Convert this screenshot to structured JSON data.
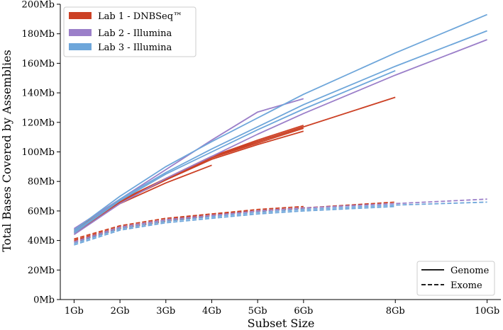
{
  "chart_data": {
    "type": "line",
    "title": "",
    "xlabel": "Subset Size",
    "ylabel": "Total Bases Covered by Assemblies",
    "x_ticks": [
      {
        "value": 1,
        "label": "1Gb"
      },
      {
        "value": 2,
        "label": "2Gb"
      },
      {
        "value": 3,
        "label": "3Gb"
      },
      {
        "value": 4,
        "label": "4Gb"
      },
      {
        "value": 5,
        "label": "5Gb"
      },
      {
        "value": 6,
        "label": "6Gb"
      },
      {
        "value": 8,
        "label": "8Gb"
      },
      {
        "value": 10,
        "label": "10Gb"
      }
    ],
    "y_ticks": [
      {
        "value": 0,
        "label": "0Mb"
      },
      {
        "value": 20,
        "label": "20Mb"
      },
      {
        "value": 40,
        "label": "40Mb"
      },
      {
        "value": 60,
        "label": "60Mb"
      },
      {
        "value": 80,
        "label": "80Mb"
      },
      {
        "value": 100,
        "label": "100Mb"
      },
      {
        "value": 120,
        "label": "120Mb"
      },
      {
        "value": 140,
        "label": "140Mb"
      },
      {
        "value": 160,
        "label": "160Mb"
      },
      {
        "value": 180,
        "label": "180Mb"
      },
      {
        "value": 200,
        "label": "200Mb"
      }
    ],
    "xlim": [
      0.7,
      10.3
    ],
    "ylim": [
      0,
      200
    ],
    "grid": false,
    "legend_labs": {
      "position": "top-left",
      "entries": [
        {
          "label": "Lab 1 - DNBSeq™",
          "color": "#cc4125"
        },
        {
          "label": "Lab 2 - Illumina",
          "color": "#9b7fc9"
        },
        {
          "label": "Lab 3 - Illumina",
          "color": "#6ea6da"
        }
      ]
    },
    "legend_styles": {
      "position": "bottom-right",
      "entries": [
        {
          "label": "Genome",
          "style": "solid"
        },
        {
          "label": "Exome",
          "style": "dashed"
        }
      ]
    },
    "series": [
      {
        "name": "Lab 1 genome a",
        "lab": 0,
        "style": "solid",
        "x": [
          1,
          2,
          3,
          4,
          5,
          6
        ],
        "y": [
          46,
          66,
          81,
          95,
          105,
          114
        ]
      },
      {
        "name": "Lab 1 genome b",
        "lab": 0,
        "style": "solid",
        "x": [
          1,
          2,
          3,
          4,
          5,
          6
        ],
        "y": [
          46,
          66,
          81,
          96,
          106,
          116
        ]
      },
      {
        "name": "Lab 1 genome c",
        "lab": 0,
        "style": "solid",
        "x": [
          1,
          2,
          3,
          4,
          5,
          6
        ],
        "y": [
          47,
          66,
          82,
          97,
          107,
          117
        ]
      },
      {
        "name": "Lab 1 genome d",
        "lab": 0,
        "style": "solid",
        "x": [
          1,
          2,
          3,
          4,
          5,
          6
        ],
        "y": [
          47,
          67,
          82,
          97,
          108,
          118
        ]
      },
      {
        "name": "Lab 1 genome e",
        "lab": 0,
        "style": "solid",
        "x": [
          1,
          2,
          3,
          4,
          5,
          6,
          8
        ],
        "y": [
          47,
          66,
          82,
          96,
          107,
          117,
          137
        ]
      },
      {
        "name": "Lab 1 genome f",
        "lab": 0,
        "style": "solid",
        "x": [
          1,
          2,
          3,
          4
        ],
        "y": [
          45,
          65,
          79,
          91
        ]
      },
      {
        "name": "Lab 2 genome a",
        "lab": 1,
        "style": "solid",
        "x": [
          1,
          2,
          3,
          4,
          5,
          6
        ],
        "y": [
          48,
          68,
          88,
          108,
          127,
          136
        ]
      },
      {
        "name": "Lab 2 genome b",
        "lab": 1,
        "style": "solid",
        "x": [
          1,
          2,
          3,
          4,
          5,
          6,
          8,
          10
        ],
        "y": [
          44,
          65,
          82,
          97,
          112,
          126,
          152,
          176
        ]
      },
      {
        "name": "Lab 3 genome a",
        "lab": 2,
        "style": "solid",
        "x": [
          1,
          2,
          3,
          4,
          5,
          6,
          8,
          10
        ],
        "y": [
          47,
          70,
          90,
          107,
          123,
          139,
          167,
          193
        ]
      },
      {
        "name": "Lab 3 genome b",
        "lab": 2,
        "style": "solid",
        "x": [
          1,
          2,
          3,
          4,
          5,
          6,
          8,
          10
        ],
        "y": [
          46,
          68,
          86,
          102,
          117,
          132,
          158,
          182
        ]
      },
      {
        "name": "Lab 3 genome c",
        "lab": 2,
        "style": "solid",
        "x": [
          1,
          2,
          3,
          4,
          5,
          6,
          8
        ],
        "y": [
          45,
          67,
          85,
          100,
          115,
          129,
          155
        ]
      },
      {
        "name": "Lab 1 exome a",
        "lab": 0,
        "style": "dashed",
        "x": [
          1,
          2,
          3,
          4,
          5,
          6
        ],
        "y": [
          41,
          50,
          55,
          58,
          61,
          63
        ]
      },
      {
        "name": "Lab 1 exome b",
        "lab": 0,
        "style": "dashed",
        "x": [
          1,
          2,
          3,
          4,
          5,
          6
        ],
        "y": [
          40,
          49,
          54,
          58,
          60,
          62
        ]
      },
      {
        "name": "Lab 1 exome c",
        "lab": 0,
        "style": "dashed",
        "x": [
          1,
          2,
          3,
          4,
          5,
          6,
          8
        ],
        "y": [
          39,
          48,
          53,
          57,
          60,
          62,
          66
        ]
      },
      {
        "name": "Lab 2 exome a",
        "lab": 1,
        "style": "dashed",
        "x": [
          1,
          2,
          3,
          4,
          5,
          6,
          8,
          10
        ],
        "y": [
          39,
          49,
          54,
          57,
          60,
          62,
          65,
          68
        ]
      },
      {
        "name": "Lab 3 exome a",
        "lab": 2,
        "style": "dashed",
        "x": [
          1,
          2,
          3,
          4,
          5,
          6,
          8,
          10
        ],
        "y": [
          38,
          48,
          53,
          56,
          59,
          61,
          64,
          66
        ]
      },
      {
        "name": "Lab 3 exome b",
        "lab": 2,
        "style": "dashed",
        "x": [
          1,
          2,
          3,
          4,
          5,
          6,
          8
        ],
        "y": [
          37,
          47,
          52,
          55,
          58,
          60,
          63
        ]
      }
    ]
  }
}
